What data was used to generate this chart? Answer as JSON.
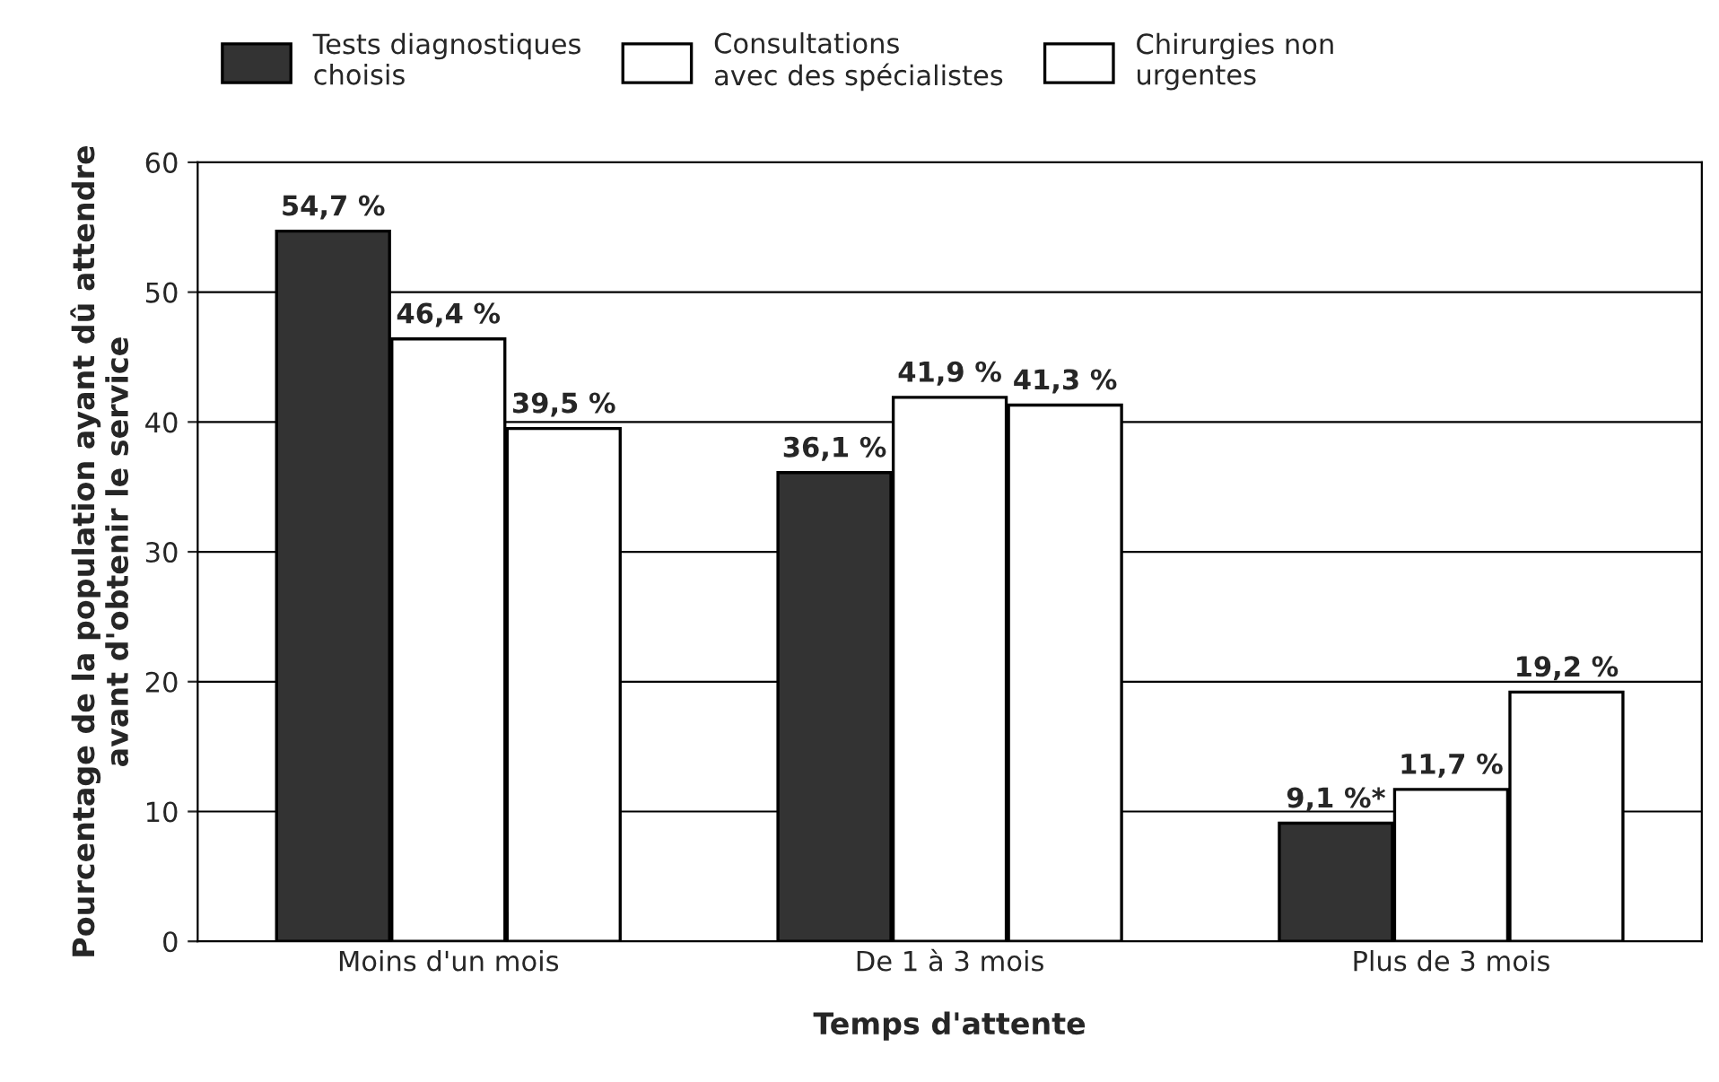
{
  "chart_data": {
    "type": "bar",
    "xlabel": "Temps d'attente",
    "ylabel": "Pourcentage de la population ayant dû attendre\navant d'obtenir le service",
    "categories": [
      "Moins d'un mois",
      "De 1 à 3 mois",
      "Plus de 3 mois"
    ],
    "series": [
      {
        "name": "Tests diagnostiques\nchoisis",
        "color": "#333333",
        "values": [
          54.7,
          36.1,
          9.1
        ],
        "value_labels": [
          "54,7 %",
          "36,1 %",
          "9,1 %*"
        ]
      },
      {
        "name": "Consultations\navec des spécialistes",
        "color": "#ffffff",
        "values": [
          46.4,
          41.9,
          11.7
        ],
        "value_labels": [
          "46,4 %",
          "41,9 %",
          "11,7 %"
        ]
      },
      {
        "name": "Chirurgies non\nurgentes",
        "color": "#ffffff",
        "values": [
          39.5,
          41.3,
          19.2
        ],
        "value_labels": [
          "39,5 %",
          "41,3 %",
          "19,2 %"
        ]
      }
    ],
    "ylim": [
      0,
      60
    ],
    "yticks": [
      0,
      10,
      20,
      30,
      40,
      50,
      60
    ],
    "grid": "y",
    "legend": "top"
  }
}
